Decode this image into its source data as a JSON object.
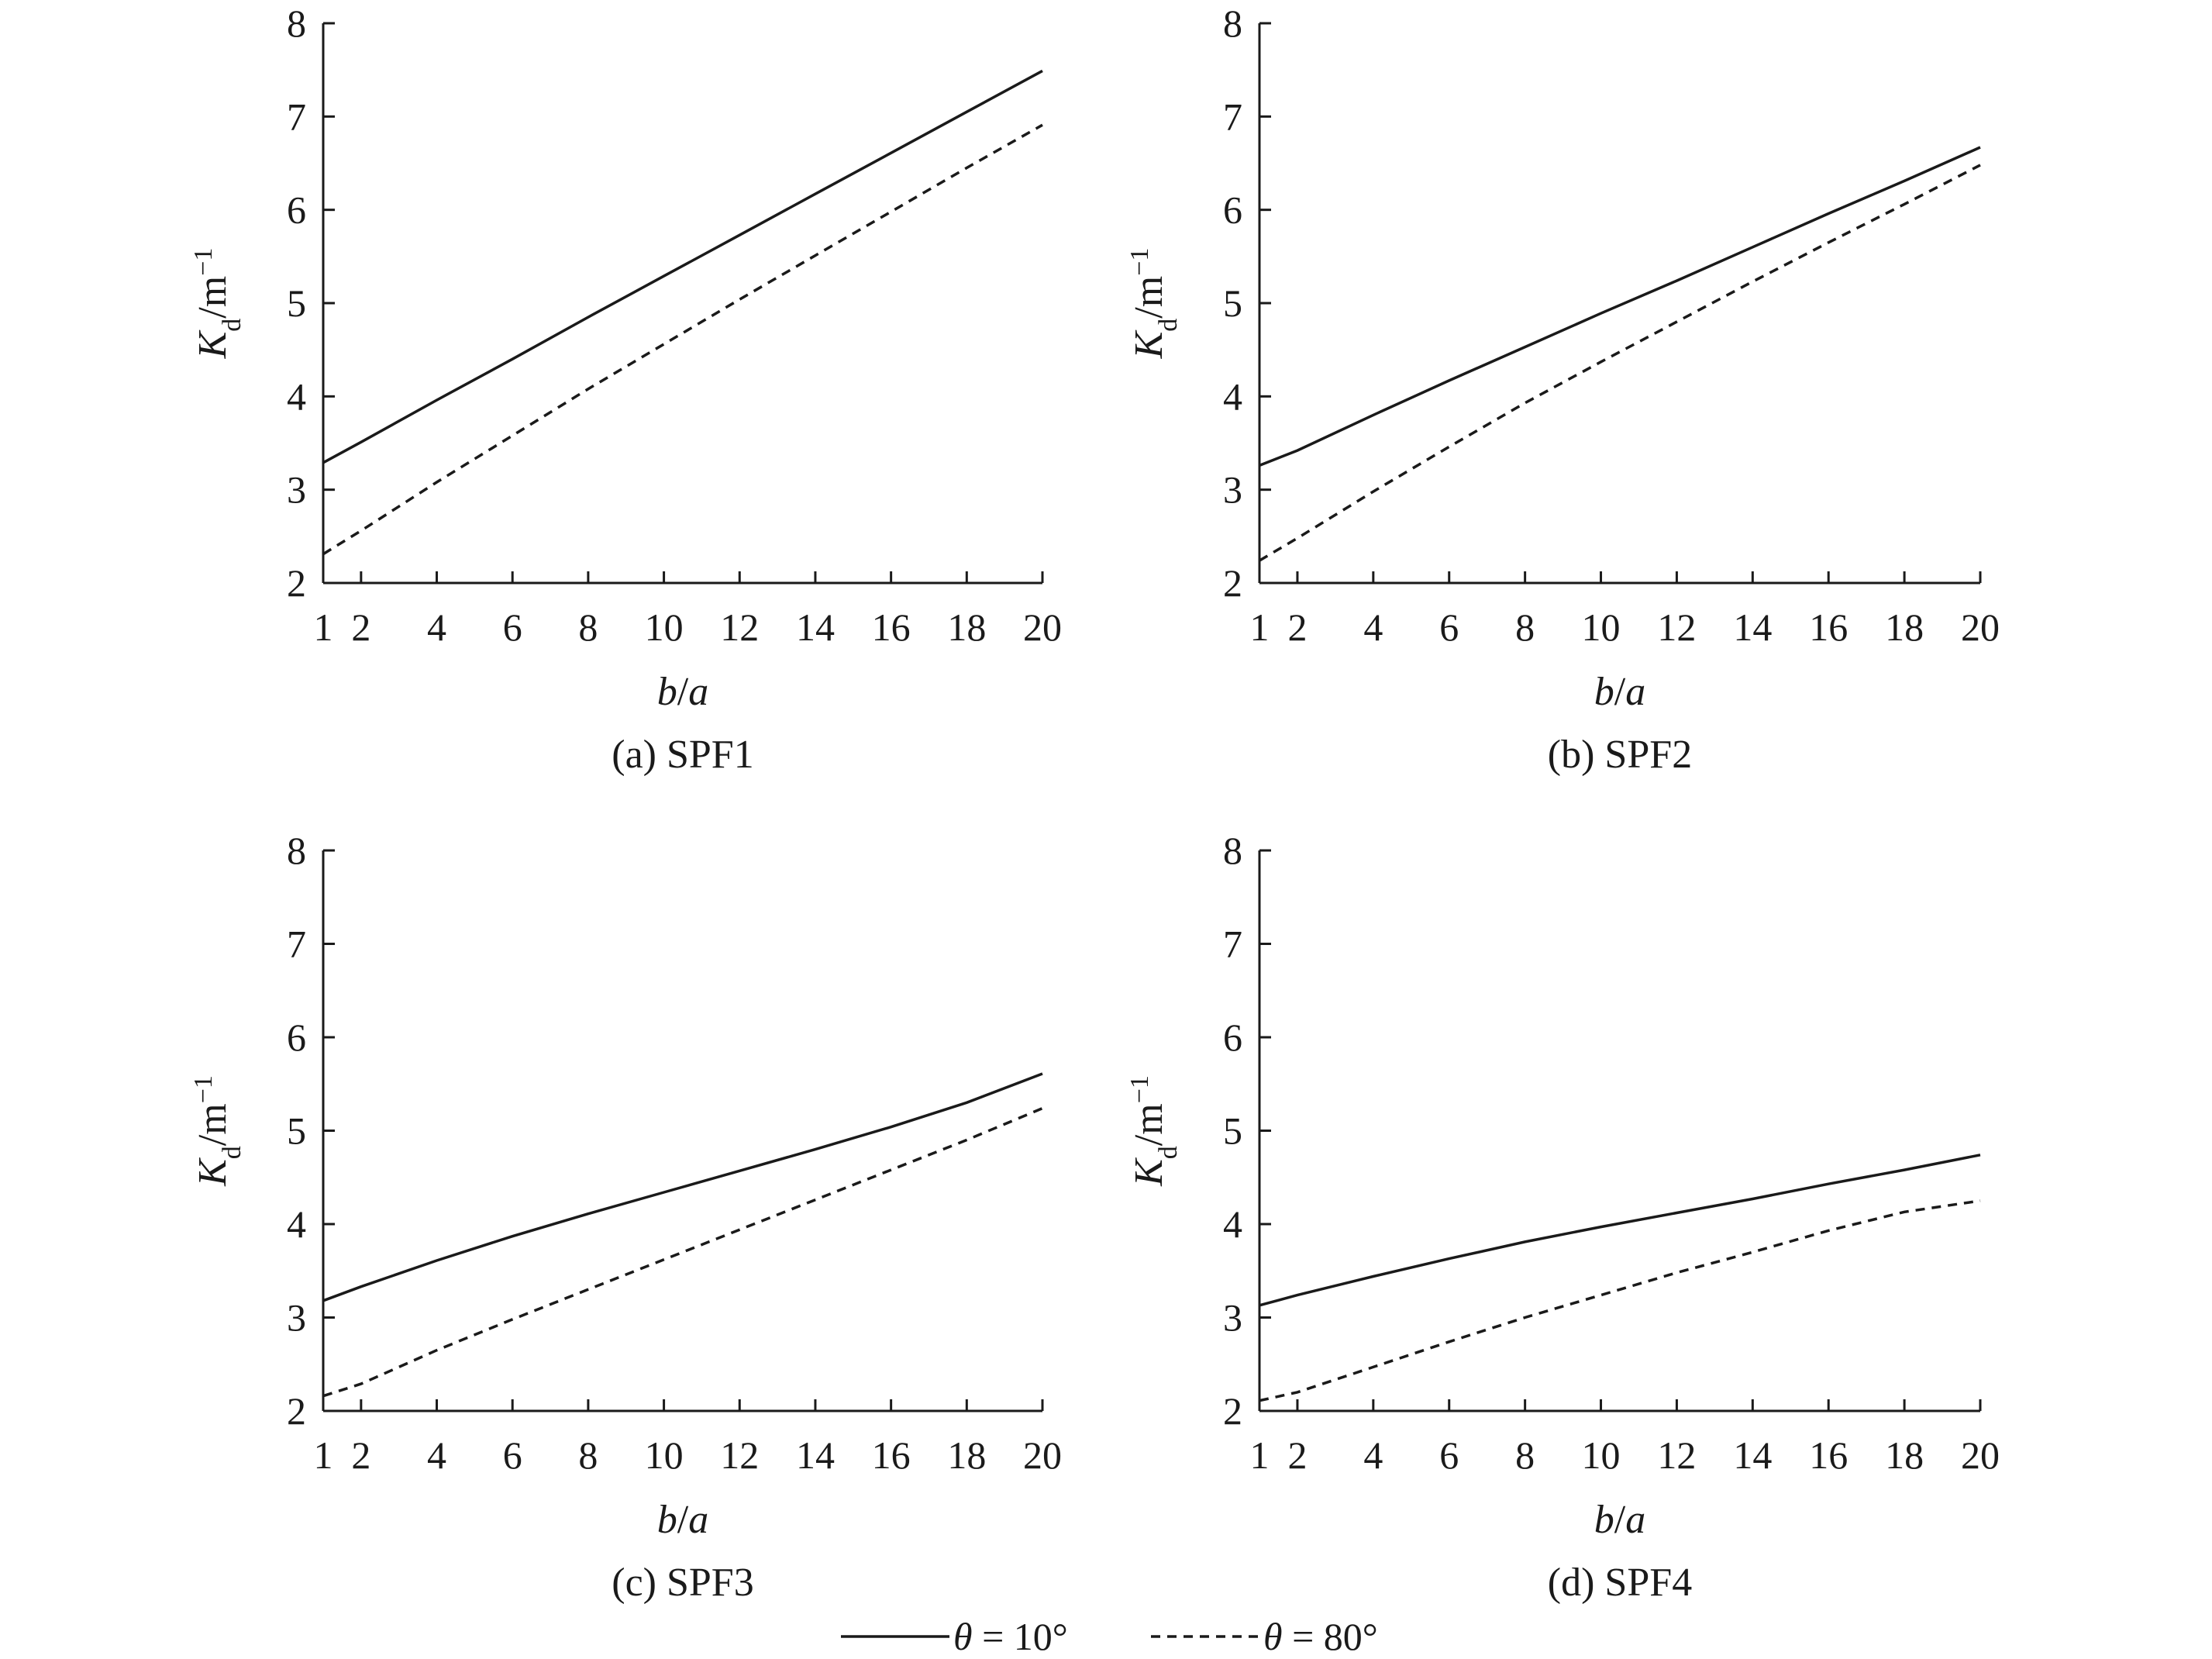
{
  "chart_data": [
    {
      "type": "line",
      "caption": "(a) SPF1",
      "xlabel": {
        "main": "b",
        "sep": "/",
        "sub": "a"
      },
      "ylabel": {
        "main": "K",
        "sub": "d",
        "unit": "/m",
        "sup": "−1"
      },
      "xlim": [
        1,
        20
      ],
      "ylim": [
        2,
        8
      ],
      "xticks": [
        1,
        2,
        4,
        6,
        8,
        10,
        12,
        14,
        16,
        18,
        20
      ],
      "yticks": [
        2,
        3,
        4,
        5,
        6,
        7,
        8
      ],
      "x": [
        1,
        2,
        4,
        6,
        8,
        10,
        12,
        14,
        16,
        18,
        20
      ],
      "series": [
        {
          "legend_ref": 0,
          "values": [
            3.29,
            3.51,
            3.96,
            4.4,
            4.85,
            5.29,
            5.73,
            6.17,
            6.61,
            7.05,
            7.49
          ]
        },
        {
          "legend_ref": 1,
          "values": [
            2.31,
            2.56,
            3.08,
            3.58,
            4.08,
            4.56,
            5.04,
            5.51,
            5.98,
            6.45,
            6.91
          ]
        }
      ]
    },
    {
      "type": "line",
      "caption": "(b) SPF2",
      "xlabel": {
        "main": "b",
        "sep": "/",
        "sub": "a"
      },
      "ylabel": {
        "main": "K",
        "sub": "d",
        "unit": "/m",
        "sup": "−1"
      },
      "xlim": [
        1,
        20
      ],
      "ylim": [
        2,
        8
      ],
      "xticks": [
        1,
        2,
        4,
        6,
        8,
        10,
        12,
        14,
        16,
        18,
        20
      ],
      "yticks": [
        2,
        3,
        4,
        5,
        6,
        7,
        8
      ],
      "x": [
        1,
        2,
        4,
        6,
        8,
        10,
        12,
        14,
        16,
        18,
        20
      ],
      "series": [
        {
          "legend_ref": 0,
          "values": [
            3.26,
            3.42,
            3.8,
            4.17,
            4.53,
            4.89,
            5.24,
            5.6,
            5.96,
            6.31,
            6.67
          ]
        },
        {
          "legend_ref": 1,
          "values": [
            2.24,
            2.48,
            2.98,
            3.46,
            3.93,
            4.37,
            4.8,
            5.23,
            5.65,
            6.06,
            6.48
          ]
        }
      ]
    },
    {
      "type": "line",
      "caption": "(c) SPF3",
      "xlabel": {
        "main": "b",
        "sep": "/",
        "sub": "a"
      },
      "ylabel": {
        "main": "K",
        "sub": "d",
        "unit": "/m",
        "sup": "−1"
      },
      "xlim": [
        1,
        20
      ],
      "ylim": [
        2,
        8
      ],
      "xticks": [
        1,
        2,
        4,
        6,
        8,
        10,
        12,
        14,
        16,
        18,
        20
      ],
      "yticks": [
        2,
        3,
        4,
        5,
        6,
        7,
        8
      ],
      "x": [
        1,
        2,
        4,
        6,
        8,
        10,
        12,
        14,
        16,
        18,
        20
      ],
      "series": [
        {
          "legend_ref": 0,
          "values": [
            3.18,
            3.33,
            3.61,
            3.87,
            4.11,
            4.34,
            4.57,
            4.8,
            5.04,
            5.3,
            5.61
          ]
        },
        {
          "legend_ref": 1,
          "values": [
            2.16,
            2.29,
            2.65,
            2.98,
            3.3,
            3.62,
            3.94,
            4.26,
            4.58,
            4.9,
            5.24
          ]
        }
      ]
    },
    {
      "type": "line",
      "caption": "(d) SPF4",
      "xlabel": {
        "main": "b",
        "sep": "/",
        "sub": "a"
      },
      "ylabel": {
        "main": "K",
        "sub": "d",
        "unit": "/m",
        "sup": "−1"
      },
      "xlim": [
        1,
        20
      ],
      "ylim": [
        2,
        8
      ],
      "xticks": [
        1,
        2,
        4,
        6,
        8,
        10,
        12,
        14,
        16,
        18,
        20
      ],
      "yticks": [
        2,
        3,
        4,
        5,
        6,
        7,
        8
      ],
      "x": [
        1,
        2,
        4,
        6,
        8,
        10,
        12,
        14,
        16,
        18,
        20
      ],
      "series": [
        {
          "legend_ref": 0,
          "values": [
            3.13,
            3.24,
            3.44,
            3.63,
            3.81,
            3.97,
            4.12,
            4.27,
            4.43,
            4.58,
            4.74
          ]
        },
        {
          "legend_ref": 1,
          "values": [
            2.11,
            2.2,
            2.47,
            2.74,
            3.0,
            3.24,
            3.48,
            3.7,
            3.93,
            4.13,
            4.25
          ]
        }
      ]
    }
  ],
  "legend": [
    {
      "symbol": "θ",
      "text": " = 10°",
      "style": "solid"
    },
    {
      "symbol": "θ",
      "text": " = 80°",
      "style": "dashed"
    }
  ],
  "colors": {
    "ink": "#1a1a1a",
    "background": "#ffffff"
  }
}
